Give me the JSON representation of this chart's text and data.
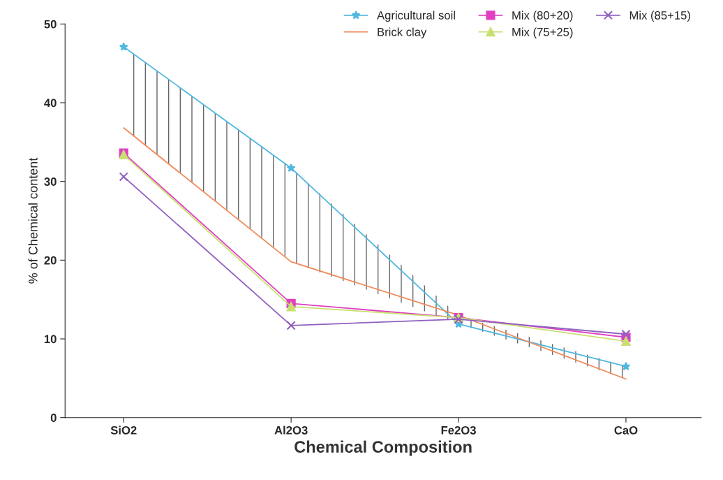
{
  "chart_data": {
    "type": "line",
    "xlabel": "Chemical Composition",
    "ylabel": "% of Chemical content",
    "categories": [
      "SiO2",
      "Al2O3",
      "Fe2O3",
      "CaO"
    ],
    "ylim": [
      0,
      50
    ],
    "yticks": [
      0,
      10,
      20,
      30,
      40,
      50
    ],
    "grid": false,
    "legend": "top right",
    "series": [
      {
        "name": "Agricultural soil",
        "color": "#4fb8e0",
        "marker": "star",
        "values": [
          47.1,
          31.7,
          11.9,
          6.5
        ],
        "lower": [
          36.8,
          19.8,
          11.9,
          4.9
        ],
        "upper": [
          47.1,
          31.7,
          13.0,
          6.5
        ]
      },
      {
        "name": "Brick clay",
        "color": "#f08a5a",
        "marker": "none",
        "values": [
          36.8,
          19.8,
          13.0,
          4.9
        ]
      },
      {
        "name": "Mix (80+20)",
        "color": "#e040c0",
        "marker": "square",
        "values": [
          33.6,
          14.5,
          12.7,
          10.2
        ]
      },
      {
        "name": "Mix (75+25)",
        "color": "#c8e070",
        "marker": "triangle",
        "values": [
          33.4,
          14.1,
          12.7,
          9.7
        ]
      },
      {
        "name": "Mix (85+15)",
        "color": "#9060c0",
        "marker": "cross",
        "values": [
          30.6,
          11.7,
          12.5,
          10.6
        ]
      }
    ]
  }
}
